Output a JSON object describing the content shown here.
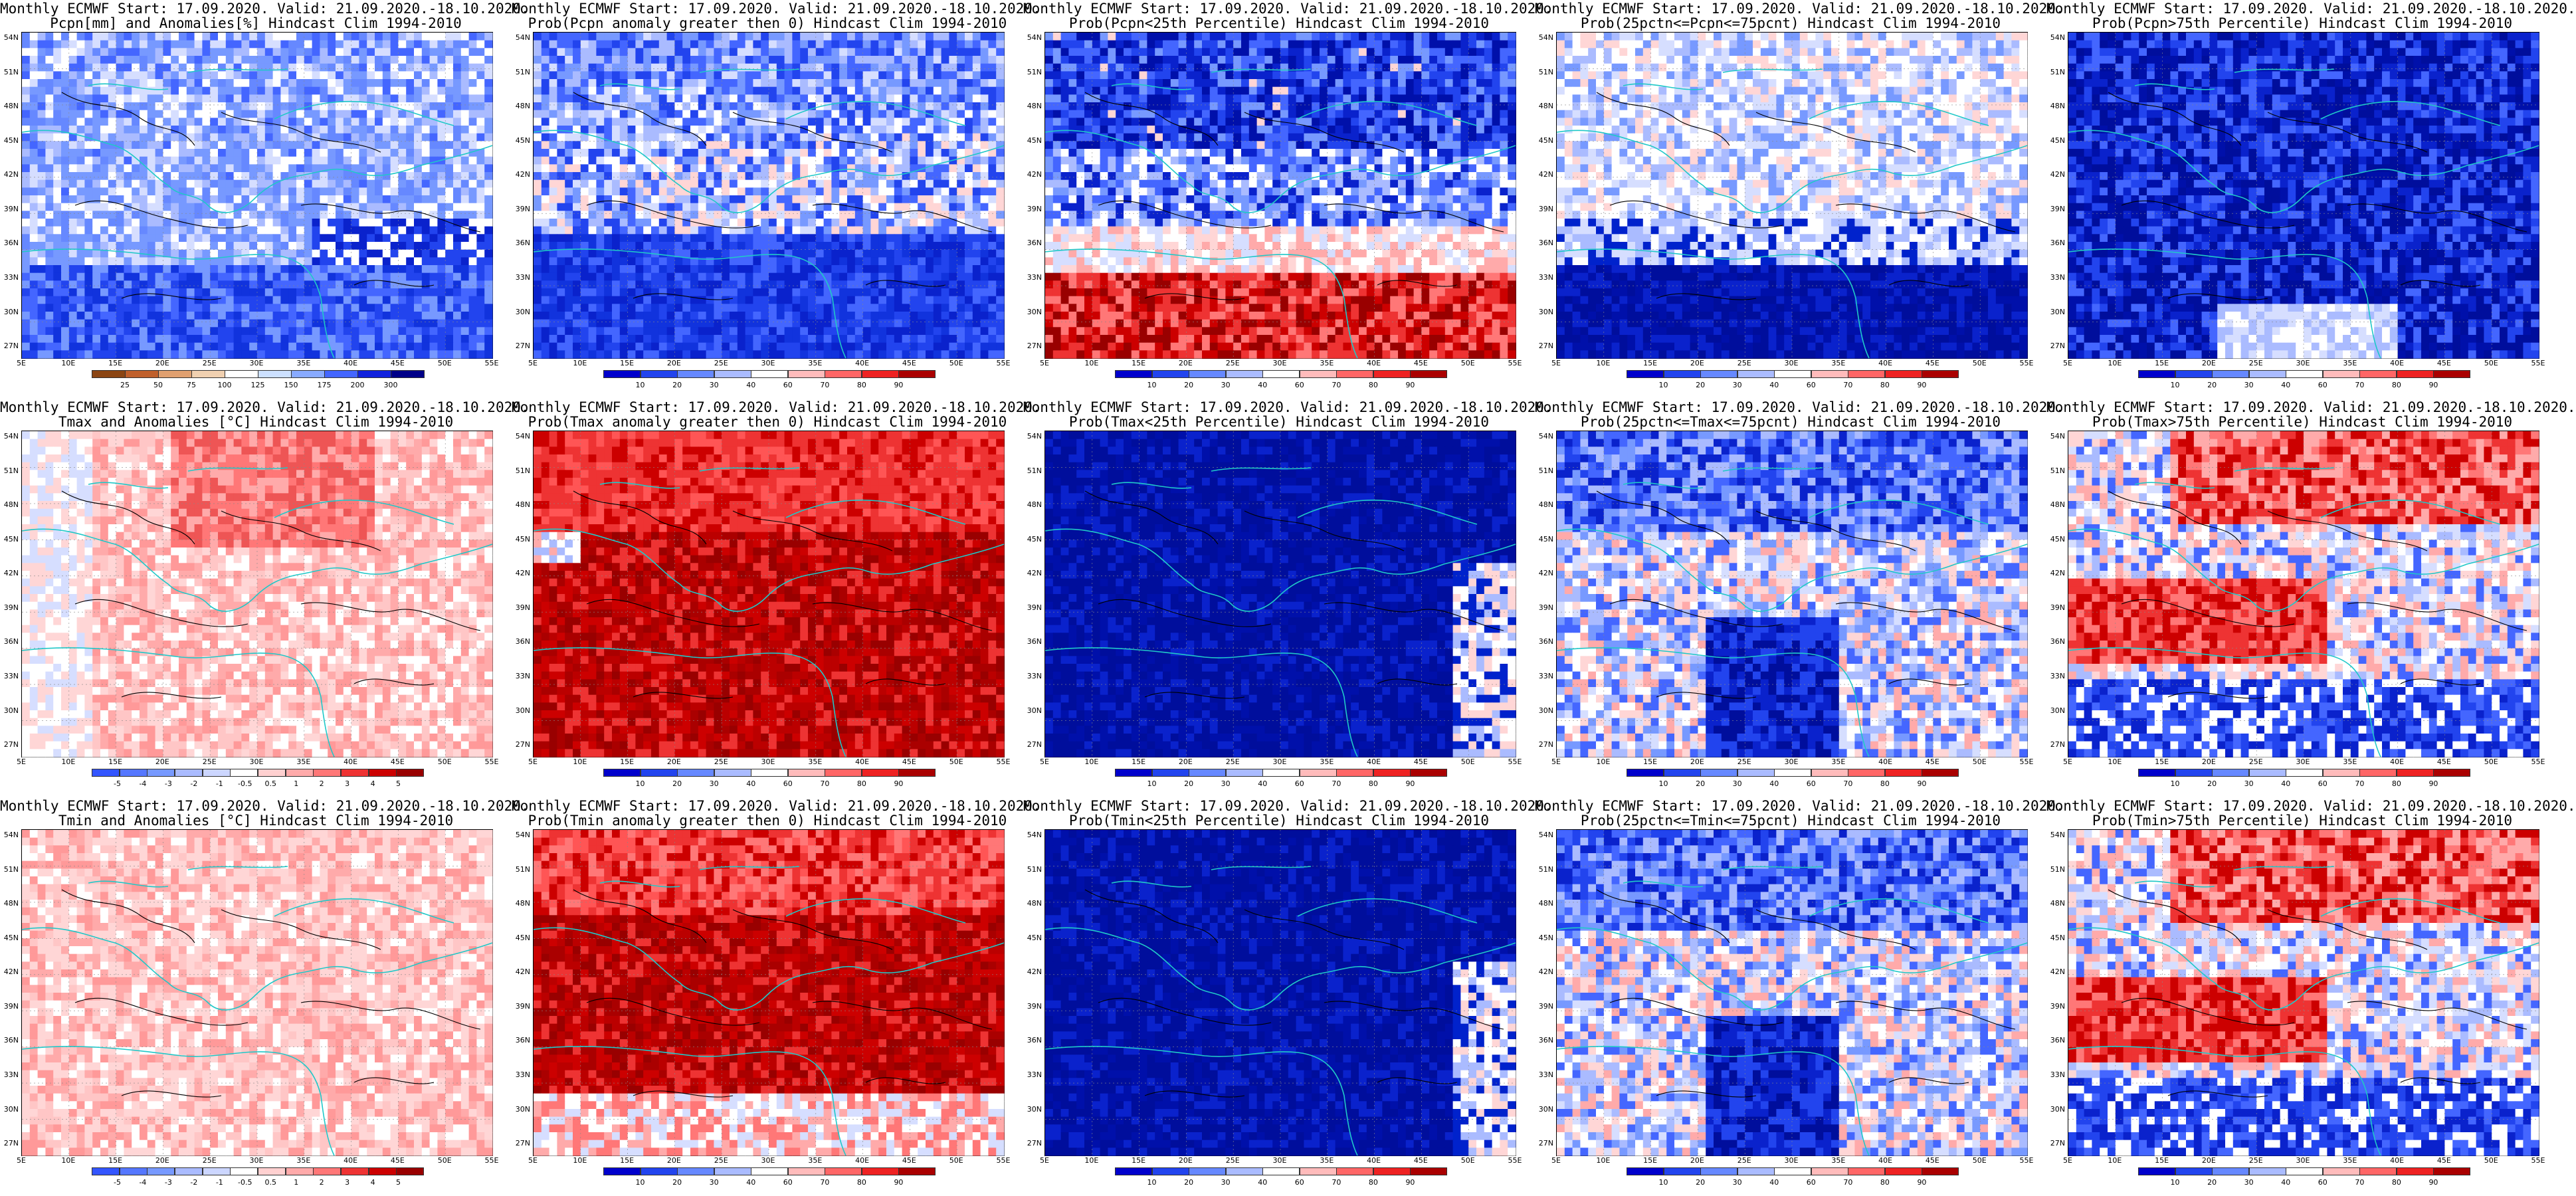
{
  "panels": [
    {
      "title1": "Monthly ECMWF Start: 17.09.2020. Valid: 21.09.2020.-18.10.2020.",
      "title2": "Pcpn[mm] and Anomalies[%] Hindcast Clim 1994-2010",
      "scheme": "prec-anom",
      "ticks": [
        "25",
        "50",
        "75",
        "100",
        "125",
        "150",
        "175",
        "200",
        "300"
      ]
    },
    {
      "title1": "Monthly ECMWF Start: 17.09.2020. Valid: 21.09.2020.-18.10.2020.",
      "title2": "Prob(Pcpn anomaly greater then 0) Hindcast Clim 1994-2010",
      "scheme": "blue-mostly",
      "ticks": [
        "10",
        "20",
        "30",
        "40",
        "60",
        "70",
        "80",
        "90"
      ]
    },
    {
      "title1": "Monthly ECMWF Start: 17.09.2020. Valid: 21.09.2020.-18.10.2020.",
      "title2": "Prob(Pcpn<25th Percentile) Hindcast Clim 1994-2010",
      "scheme": "blue-north-red-south",
      "ticks": [
        "10",
        "20",
        "30",
        "40",
        "60",
        "70",
        "80",
        "90"
      ]
    },
    {
      "title1": "Monthly ECMWF Start: 17.09.2020. Valid: 21.09.2020.-18.10.2020.",
      "title2": "Prob(25pctn<=Pcpn<=75pcnt) Hindcast Clim 1994-2010",
      "scheme": "white-mid-blue-south",
      "ticks": [
        "10",
        "20",
        "30",
        "40",
        "60",
        "70",
        "80",
        "90"
      ]
    },
    {
      "title1": "Monthly ECMWF Start: 17.09.2020. Valid: 21.09.2020.-18.10.2020.",
      "title2": "Prob(Pcpn>75th Percentile) Hindcast Clim 1994-2010",
      "scheme": "deep-blue",
      "ticks": [
        "10",
        "20",
        "30",
        "40",
        "60",
        "70",
        "80",
        "90"
      ]
    },
    {
      "title1": "Monthly ECMWF Start: 17.09.2020. Valid: 21.09.2020.-18.10.2020.",
      "title2": "Tmax and Anomalies [°C] Hindcast Clim 1994-2010",
      "scheme": "temp-anom-light",
      "ticks": [
        "-5",
        "-4",
        "-3",
        "-2",
        "-1",
        "-0.5",
        "0.5",
        "1",
        "2",
        "3",
        "4",
        "5"
      ]
    },
    {
      "title1": "Monthly ECMWF Start: 17.09.2020. Valid: 21.09.2020.-18.10.2020.",
      "title2": "Prob(Tmax anomaly greater then 0) Hindcast Clim 1994-2010",
      "scheme": "deep-red",
      "ticks": [
        "10",
        "20",
        "30",
        "40",
        "60",
        "70",
        "80",
        "90"
      ]
    },
    {
      "title1": "Monthly ECMWF Start: 17.09.2020. Valid: 21.09.2020.-18.10.2020.",
      "title2": "Prob(Tmax<25th Percentile) Hindcast Clim 1994-2010",
      "scheme": "navy",
      "ticks": [
        "10",
        "20",
        "30",
        "40",
        "60",
        "70",
        "80",
        "90"
      ]
    },
    {
      "title1": "Monthly ECMWF Start: 17.09.2020. Valid: 21.09.2020.-18.10.2020.",
      "title2": "Prob(25pctn<=Tmax<=75pcnt) Hindcast Clim 1994-2010",
      "scheme": "mixed-blue",
      "ticks": [
        "10",
        "20",
        "30",
        "40",
        "60",
        "70",
        "80",
        "90"
      ]
    },
    {
      "title1": "Monthly ECMWF Start: 17.09.2020. Valid: 21.09.2020.-18.10.2020.",
      "title2": "Prob(Tmax>75th Percentile) Hindcast Clim 1994-2010",
      "scheme": "red-blue-mixed",
      "ticks": [
        "10",
        "20",
        "30",
        "40",
        "60",
        "70",
        "80",
        "90"
      ]
    },
    {
      "title1": "Monthly ECMWF Start: 17.09.2020. Valid: 21.09.2020.-18.10.2020.",
      "title2": "Tmin and Anomalies [°C] Hindcast Clim 1994-2010",
      "scheme": "temp-anom-pink",
      "ticks": [
        "-5",
        "-4",
        "-3",
        "-2",
        "-1",
        "-0.5",
        "0.5",
        "1",
        "2",
        "3",
        "4",
        "5"
      ]
    },
    {
      "title1": "Monthly ECMWF Start: 17.09.2020. Valid: 21.09.2020.-18.10.2020.",
      "title2": "Prob(Tmin anomaly greater then 0) Hindcast Clim 1994-2010",
      "scheme": "deep-red-south-white",
      "ticks": [
        "10",
        "20",
        "30",
        "40",
        "60",
        "70",
        "80",
        "90"
      ]
    },
    {
      "title1": "Monthly ECMWF Start: 17.09.2020. Valid: 21.09.2020.-18.10.2020.",
      "title2": "Prob(Tmin<25th Percentile) Hindcast Clim 1994-2010",
      "scheme": "navy",
      "ticks": [
        "10",
        "20",
        "30",
        "40",
        "60",
        "70",
        "80",
        "90"
      ]
    },
    {
      "title1": "Monthly ECMWF Start: 17.09.2020. Valid: 21.09.2020.-18.10.2020.",
      "title2": "Prob(25pctn<=Tmin<=75pcnt) Hindcast Clim 1994-2010",
      "scheme": "mixed-blue",
      "ticks": [
        "10",
        "20",
        "30",
        "40",
        "60",
        "70",
        "80",
        "90"
      ]
    },
    {
      "title1": "Monthly ECMWF Start: 17.09.2020. Valid: 21.09.2020.-18.10.2020.",
      "title2": "Prob(Tmin>75th Percentile) Hindcast Clim 1994-2010",
      "scheme": "red-blue-mixed",
      "ticks": [
        "10",
        "20",
        "30",
        "40",
        "60",
        "70",
        "80",
        "90"
      ]
    }
  ],
  "lat_labels": [
    "54N",
    "51N",
    "48N",
    "45N",
    "42N",
    "39N",
    "36N",
    "33N",
    "30N",
    "27N"
  ],
  "lon_labels": [
    "5E",
    "10E",
    "15E",
    "20E",
    "25E",
    "30E",
    "35E",
    "40E",
    "45E",
    "50E",
    "55E"
  ],
  "colors": {
    "coast": "#20c8c8",
    "contour": "#000000",
    "cb_prob": [
      "#0000cc",
      "#2244ee",
      "#6688ff",
      "#aabbff",
      "#ffffff",
      "#ffbbbb",
      "#ff6666",
      "#ee2222",
      "#aa0000"
    ],
    "cb_anom": [
      "#3355ff",
      "#5577ff",
      "#7799ff",
      "#aabbff",
      "#ccd6ff",
      "#ffffff",
      "#ffd0d0",
      "#ffaaaa",
      "#ff7777",
      "#ee3333",
      "#cc0000",
      "#990000"
    ],
    "cb_prec": [
      "#8b4513",
      "#c0602c",
      "#e0a070",
      "#f0d0b0",
      "#ffffff",
      "#cce0ff",
      "#88aaff",
      "#4466ff",
      "#1122dd",
      "#000088"
    ]
  }
}
